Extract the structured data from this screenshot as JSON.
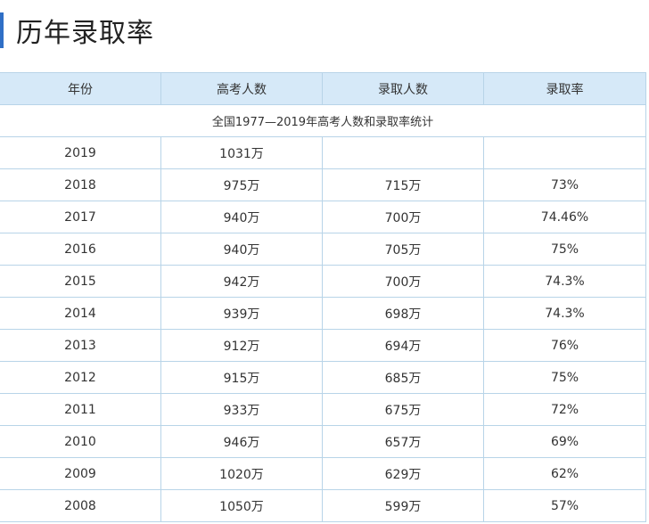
{
  "page": {
    "title": "历年录取率",
    "accent_color": "#2f6fc6",
    "header_bg": "#d6e9f8",
    "border_color": "#b8d4e8"
  },
  "table": {
    "headers": [
      "年份",
      "高考人数",
      "录取人数",
      "录取率"
    ],
    "caption": "全国1977—2019年高考人数和录取率统计",
    "rows": [
      [
        "2019",
        "1031万",
        "",
        ""
      ],
      [
        "2018",
        "975万",
        "715万",
        "73%"
      ],
      [
        "2017",
        "940万",
        "700万",
        "74.46%"
      ],
      [
        "2016",
        "940万",
        "705万",
        "75%"
      ],
      [
        "2015",
        "942万",
        "700万",
        "74.3%"
      ],
      [
        "2014",
        "939万",
        "698万",
        "74.3%"
      ],
      [
        "2013",
        "912万",
        "694万",
        "76%"
      ],
      [
        "2012",
        "915万",
        "685万",
        "75%"
      ],
      [
        "2011",
        "933万",
        "675万",
        "72%"
      ],
      [
        "2010",
        "946万",
        "657万",
        "69%"
      ],
      [
        "2009",
        "1020万",
        "629万",
        "62%"
      ],
      [
        "2008",
        "1050万",
        "599万",
        "57%"
      ]
    ]
  }
}
